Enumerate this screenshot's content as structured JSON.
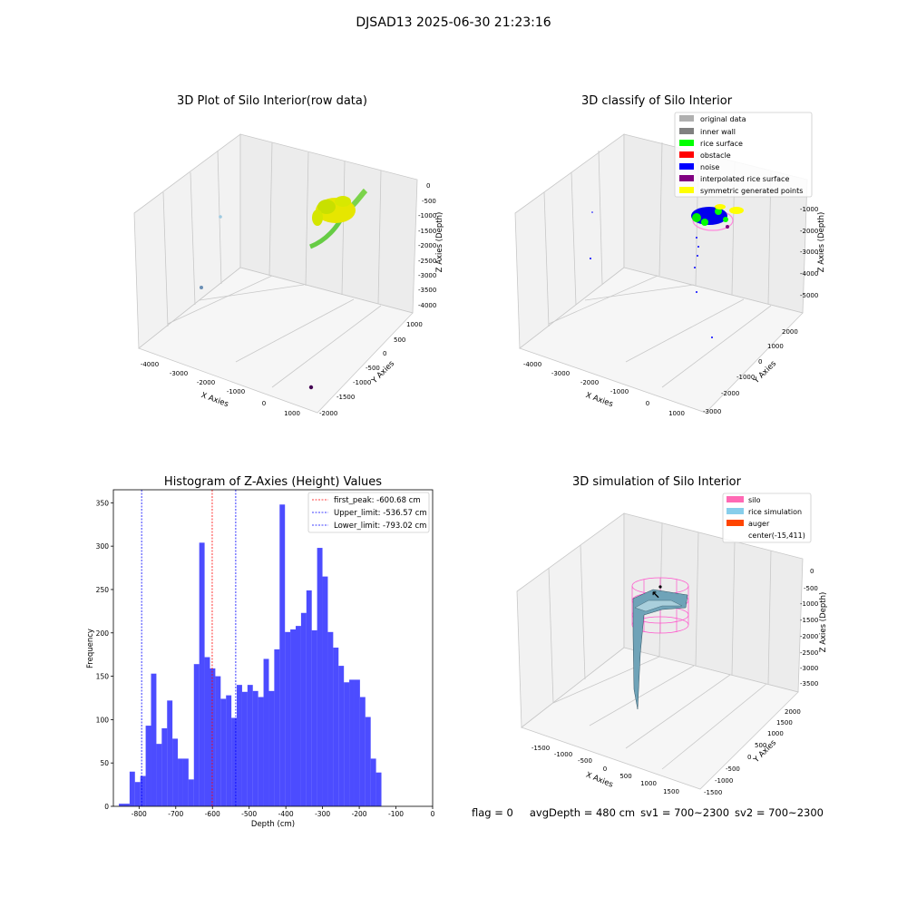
{
  "suptitle": "DJSAD13 2025-06-30 21:23:16",
  "panels": {
    "raw": {
      "title": "3D Plot of Silo Interior(row data)",
      "xlabel": "X Axies",
      "ylabel": "Y Axies",
      "zlabel": "Z Axies (Depth)",
      "xticks": [
        "-4000",
        "-3000",
        "-2000",
        "-1000",
        "0",
        "1000"
      ],
      "yticks": [
        "1000",
        "500",
        "0",
        "-500",
        "-1000",
        "-1500",
        "-2000"
      ],
      "zticks": [
        "0",
        "-500",
        "-1000",
        "-1500",
        "-2000",
        "-2500",
        "-3000",
        "-3500",
        "-4000"
      ]
    },
    "classify": {
      "title": "3D classify of Silo Interior",
      "xlabel": "X Axies",
      "ylabel": "Y Axies",
      "zlabel": "Z Axies (Depth)",
      "xticks": [
        "-4000",
        "-3000",
        "-2000",
        "-1000",
        "0",
        "1000"
      ],
      "yticks": [
        "2000",
        "1000",
        "0",
        "-1000",
        "-2000",
        "-3000"
      ],
      "zticks": [
        "-1000",
        "-2000",
        "-3000",
        "-4000",
        "-5000"
      ],
      "legend": [
        {
          "label": "original data",
          "color": "#b0b0b0"
        },
        {
          "label": "inner wall",
          "color": "#808080"
        },
        {
          "label": "rice surface",
          "color": "#00ff00"
        },
        {
          "label": "obstacle",
          "color": "#ff0000"
        },
        {
          "label": "noise",
          "color": "#0000ff"
        },
        {
          "label": "interpolated rice surface",
          "color": "#800080"
        },
        {
          "label": "symmetric generated points",
          "color": "#ffff00"
        }
      ]
    },
    "simulation": {
      "title": "3D simulation of Silo Interior",
      "xlabel": "X Axies",
      "ylabel": "Y Axies",
      "zlabel": "Z Axies (Depth)",
      "xticks": [
        "-1500",
        "-1000",
        "-500",
        "0",
        "500",
        "1000",
        "1500"
      ],
      "yticks": [
        "2000",
        "1500",
        "1000",
        "500",
        "0",
        "-500",
        "-1000",
        "-1500"
      ],
      "zticks": [
        "0",
        "-500",
        "-1000",
        "-1500",
        "-2000",
        "-2500",
        "-3000",
        "-3500"
      ],
      "legend": [
        {
          "label": "silo",
          "color": "#ff69b4"
        },
        {
          "label": "rice simulation",
          "color": "#87ceeb"
        },
        {
          "label": "auger",
          "color": "#ff4500"
        },
        {
          "label": "center(-15,411)",
          "color": ""
        }
      ]
    }
  },
  "chart_data": {
    "type": "bar",
    "title": "Histogram of Z-Axies (Height) Values",
    "xlabel": "Depth (cm)",
    "ylabel": "Frequency",
    "xlim": [
      -870,
      0
    ],
    "ylim": [
      0,
      365
    ],
    "xticks": [
      -800,
      -700,
      -600,
      -500,
      -400,
      -300,
      -200,
      -100,
      0
    ],
    "yticks": [
      0,
      50,
      100,
      150,
      200,
      250,
      300,
      350
    ],
    "bin_width": 14.6,
    "bin_start": -855,
    "values": [
      3,
      3,
      40,
      28,
      35,
      93,
      153,
      72,
      90,
      122,
      78,
      55,
      55,
      31,
      164,
      304,
      172,
      159,
      150,
      124,
      128,
      102,
      140,
      132,
      140,
      133,
      126,
      170,
      133,
      181,
      348,
      201,
      204,
      208,
      223,
      249,
      203,
      298,
      265,
      201,
      183,
      162,
      143,
      146,
      146,
      126,
      103,
      55,
      39
    ],
    "bar_color": "#0000ff",
    "lines": [
      {
        "label": "first_peak: -600.68 cm",
        "x": -600.68,
        "color": "#ff0000"
      },
      {
        "label": "Upper_limit: -536.57 cm",
        "x": -536.57,
        "color": "#0000ff"
      },
      {
        "label": "Lower_limit: -793.02 cm",
        "x": -793.02,
        "color": "#0000ff"
      }
    ],
    "legend_position": "top-right"
  },
  "footer": {
    "flag": "flag = 0",
    "avg": "avgDepth = 480 cm",
    "sv1": "sv1 = 700~2300",
    "sv2": "sv2 = 700~2300"
  }
}
